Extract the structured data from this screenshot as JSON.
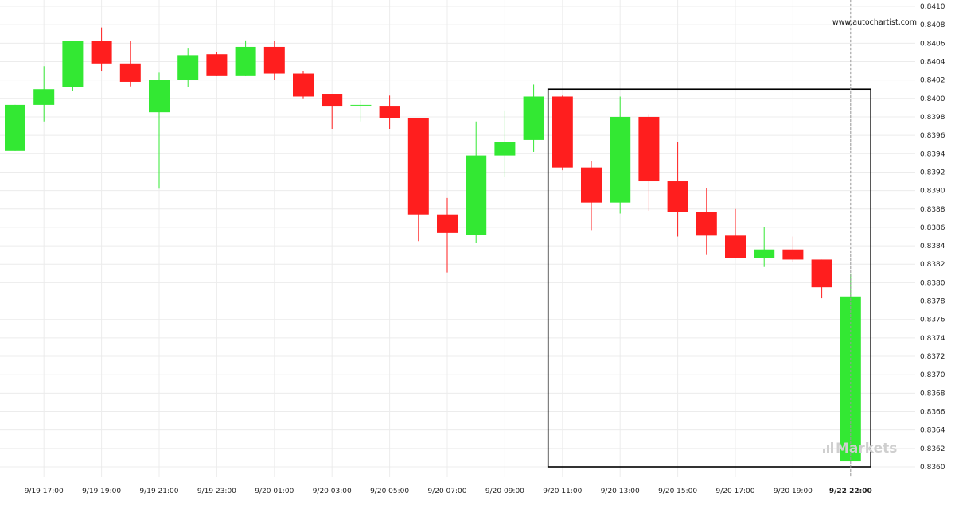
{
  "chart_data": {
    "type": "candlestick",
    "watermark": "www.autochartist.com",
    "brand": "Markets",
    "colors": {
      "up": "#33e833",
      "down": "#ff1e1e",
      "grid": "#ececec",
      "box": "#000000",
      "crosshair": "#9a9a9a"
    },
    "y_ticks": [
      "0.8360",
      "0.8362",
      "0.8364",
      "0.8366",
      "0.8368",
      "0.8370",
      "0.8372",
      "0.8374",
      "0.8376",
      "0.8378",
      "0.8380",
      "0.8382",
      "0.8384",
      "0.8386",
      "0.8388",
      "0.8390",
      "0.8392",
      "0.8394",
      "0.8396",
      "0.8398",
      "0.8400",
      "0.8402",
      "0.8404",
      "0.8406",
      "0.8408",
      "0.8410"
    ],
    "ylim": [
      0.8359,
      0.841
    ],
    "x_tick_labels": [
      "9/19 17:00",
      "9/19 19:00",
      "9/19 21:00",
      "9/19 23:00",
      "9/20 01:00",
      "9/20 03:00",
      "9/20 05:00",
      "9/20 07:00",
      "9/20 09:00",
      "9/20 11:00",
      "9/20 13:00",
      "9/20 15:00",
      "9/20 17:00",
      "9/20 19:00",
      "9/22 22:00"
    ],
    "x_tick_index": [
      1,
      3,
      5,
      7,
      9,
      11,
      13,
      15,
      17,
      19,
      21,
      23,
      25,
      27,
      29
    ],
    "pattern_box": {
      "from_index": 18.5,
      "to_index": 29.7,
      "top": 0.8401,
      "bottom": 0.836
    },
    "candles": [
      {
        "o": 0.83943,
        "h": 0.83993,
        "l": 0.83943,
        "c": 0.83993
      },
      {
        "o": 0.83993,
        "h": 0.84035,
        "l": 0.83975,
        "c": 0.8401
      },
      {
        "o": 0.84012,
        "h": 0.84062,
        "l": 0.84008,
        "c": 0.84062
      },
      {
        "o": 0.84062,
        "h": 0.84077,
        "l": 0.8403,
        "c": 0.84038
      },
      {
        "o": 0.84038,
        "h": 0.84062,
        "l": 0.84013,
        "c": 0.84018
      },
      {
        "o": 0.83985,
        "h": 0.84028,
        "l": 0.83902,
        "c": 0.8402
      },
      {
        "o": 0.8402,
        "h": 0.84055,
        "l": 0.84012,
        "c": 0.84047
      },
      {
        "o": 0.84048,
        "h": 0.8405,
        "l": 0.84025,
        "c": 0.84025
      },
      {
        "o": 0.84025,
        "h": 0.84063,
        "l": 0.84025,
        "c": 0.84056
      },
      {
        "o": 0.84056,
        "h": 0.84062,
        "l": 0.8402,
        "c": 0.84027
      },
      {
        "o": 0.84027,
        "h": 0.8403,
        "l": 0.84,
        "c": 0.84002
      },
      {
        "o": 0.84005,
        "h": 0.84005,
        "l": 0.83967,
        "c": 0.83992
      },
      {
        "o": 0.83993,
        "h": 0.83998,
        "l": 0.83975,
        "c": 0.83993
      },
      {
        "o": 0.83992,
        "h": 0.84003,
        "l": 0.83967,
        "c": 0.83979
      },
      {
        "o": 0.83979,
        "h": 0.83979,
        "l": 0.83845,
        "c": 0.83874
      },
      {
        "o": 0.83874,
        "h": 0.83892,
        "l": 0.83811,
        "c": 0.83854
      },
      {
        "o": 0.83852,
        "h": 0.83975,
        "l": 0.83843,
        "c": 0.83938
      },
      {
        "o": 0.83938,
        "h": 0.83987,
        "l": 0.83915,
        "c": 0.83953
      },
      {
        "o": 0.83955,
        "h": 0.84015,
        "l": 0.83942,
        "c": 0.84002
      },
      {
        "o": 0.84002,
        "h": 0.84003,
        "l": 0.83922,
        "c": 0.83925
      },
      {
        "o": 0.83925,
        "h": 0.83932,
        "l": 0.83857,
        "c": 0.83887
      },
      {
        "o": 0.83887,
        "h": 0.84002,
        "l": 0.83875,
        "c": 0.8398
      },
      {
        "o": 0.8398,
        "h": 0.83983,
        "l": 0.83878,
        "c": 0.8391
      },
      {
        "o": 0.8391,
        "h": 0.83953,
        "l": 0.8385,
        "c": 0.83877
      },
      {
        "o": 0.83877,
        "h": 0.83903,
        "l": 0.8383,
        "c": 0.83851
      },
      {
        "o": 0.83851,
        "h": 0.8388,
        "l": 0.83827,
        "c": 0.83827
      },
      {
        "o": 0.83827,
        "h": 0.8386,
        "l": 0.83817,
        "c": 0.83836
      },
      {
        "o": 0.83836,
        "h": 0.8385,
        "l": 0.83822,
        "c": 0.83825
      },
      {
        "o": 0.83825,
        "h": 0.83825,
        "l": 0.83783,
        "c": 0.83795
      },
      {
        "o": 0.83606,
        "h": 0.8381,
        "l": 0.83606,
        "c": 0.83785
      }
    ]
  }
}
